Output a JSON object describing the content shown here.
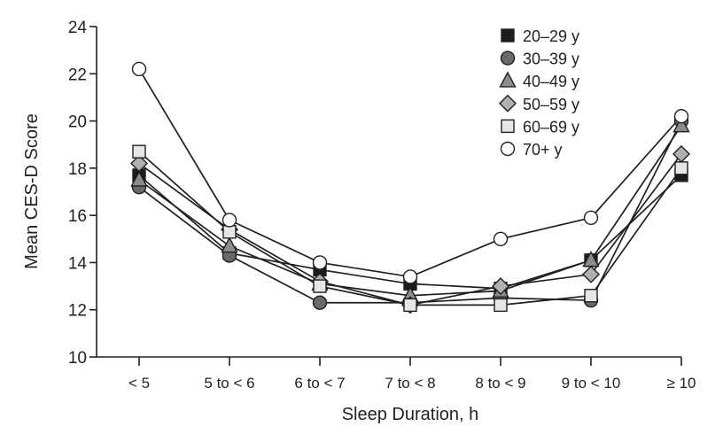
{
  "chart_data": {
    "type": "line",
    "title": "",
    "xlabel": "Sleep Duration, h",
    "ylabel": "Mean CES-D Score",
    "categories": [
      "< 5",
      "5 to < 6",
      "6 to < 7",
      "7 to < 8",
      "8 to < 9",
      "9 to < 10",
      "≥ 10"
    ],
    "ylim": [
      10,
      24
    ],
    "yticks": [
      10,
      12,
      14,
      16,
      18,
      20,
      22,
      24
    ],
    "grid": false,
    "legend_position": "top-right",
    "series": [
      {
        "name": "20–29 y",
        "marker": "square",
        "color": "#1c1c1c",
        "values": [
          17.7,
          14.4,
          13.7,
          13.1,
          12.9,
          14.1,
          17.7
        ]
      },
      {
        "name": "30–39 y",
        "marker": "circle",
        "color": "#6a6a6a",
        "values": [
          17.2,
          14.3,
          12.3,
          12.3,
          12.5,
          12.4,
          20.0
        ]
      },
      {
        "name": "40–49 y",
        "marker": "triangle",
        "color": "#8c8c8c",
        "values": [
          17.5,
          14.7,
          13.1,
          12.6,
          12.8,
          14.1,
          19.8
        ]
      },
      {
        "name": "50–59 y",
        "marker": "diamond",
        "color": "#b0b0b0",
        "values": [
          18.2,
          15.4,
          13.2,
          12.2,
          13.0,
          13.5,
          18.6
        ]
      },
      {
        "name": "60–69 y",
        "marker": "square",
        "color": "#e6e6e6",
        "values": [
          18.7,
          15.3,
          13.0,
          12.2,
          12.2,
          12.6,
          18.0
        ]
      },
      {
        "name": "70+ y",
        "marker": "circle",
        "color": "#ffffff",
        "values": [
          22.2,
          15.8,
          14.0,
          13.4,
          15.0,
          15.9,
          20.2
        ]
      }
    ]
  }
}
